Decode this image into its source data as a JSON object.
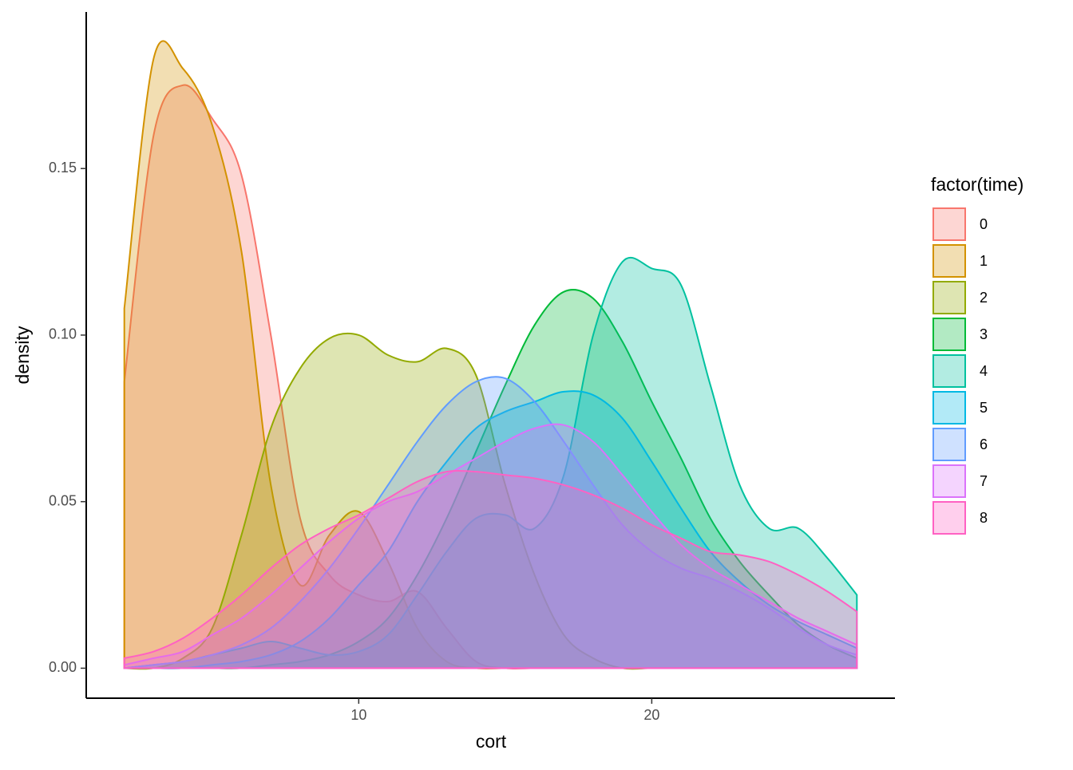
{
  "chart_data": {
    "type": "density",
    "x_label": "cort",
    "y_label": "density",
    "x": [
      2,
      3,
      4,
      5,
      6,
      7,
      8,
      9,
      10,
      11,
      12,
      13,
      14,
      15,
      16,
      17,
      18,
      19,
      20,
      21,
      22,
      23,
      24,
      25,
      26,
      27
    ],
    "xlim": [
      0.7,
      28.3
    ],
    "ylim": [
      -0.009,
      0.197
    ],
    "xticks": [
      10,
      20
    ],
    "yticks": [
      {
        "value": 0,
        "label": "0.00"
      },
      {
        "value": 0.05,
        "label": "0.05"
      },
      {
        "value": 0.1,
        "label": "0.10"
      },
      {
        "value": 0.15,
        "label": "0.15"
      }
    ],
    "legend_title": "factor(time)",
    "legend_position": "right",
    "fill_opacity": 0.3,
    "series": [
      {
        "name": "0",
        "color": "#F8766D",
        "values": [
          0.086,
          0.16,
          0.175,
          0.165,
          0.148,
          0.1,
          0.045,
          0.028,
          0.022,
          0.02,
          0.023,
          0.012,
          0.002,
          0,
          0,
          0,
          0,
          0,
          0,
          0,
          0,
          0,
          0,
          0,
          0,
          0
        ]
      },
      {
        "name": "1",
        "color": "#D39200",
        "values": [
          0.108,
          0.183,
          0.18,
          0.163,
          0.125,
          0.055,
          0.025,
          0.04,
          0.047,
          0.032,
          0.012,
          0.002,
          0,
          0,
          0,
          0,
          0,
          0,
          0,
          0,
          0,
          0,
          0,
          0,
          0,
          0
        ]
      },
      {
        "name": "2",
        "color": "#93AA00",
        "values": [
          0,
          0,
          0.003,
          0.012,
          0.04,
          0.072,
          0.09,
          0.099,
          0.1,
          0.094,
          0.092,
          0.096,
          0.088,
          0.055,
          0.028,
          0.01,
          0.003,
          0,
          0,
          0,
          0,
          0,
          0,
          0,
          0,
          0
        ]
      },
      {
        "name": "3",
        "color": "#00BA38",
        "values": [
          0,
          0,
          0,
          0,
          0,
          0.001,
          0.002,
          0.004,
          0.008,
          0.015,
          0.028,
          0.045,
          0.065,
          0.085,
          0.103,
          0.113,
          0.111,
          0.098,
          0.08,
          0.063,
          0.045,
          0.032,
          0.022,
          0.013,
          0.007,
          0.003
        ]
      },
      {
        "name": "4",
        "color": "#00C19F",
        "values": [
          0,
          0.001,
          0.002,
          0.004,
          0.006,
          0.008,
          0.006,
          0.004,
          0.005,
          0.01,
          0.022,
          0.035,
          0.045,
          0.046,
          0.042,
          0.058,
          0.1,
          0.122,
          0.12,
          0.115,
          0.085,
          0.055,
          0.042,
          0.042,
          0.033,
          0.022
        ]
      },
      {
        "name": "5",
        "color": "#00B9E3",
        "values": [
          0,
          0,
          0,
          0.001,
          0.002,
          0.004,
          0.008,
          0.015,
          0.025,
          0.035,
          0.05,
          0.062,
          0.072,
          0.077,
          0.08,
          0.083,
          0.082,
          0.075,
          0.062,
          0.048,
          0.035,
          0.026,
          0.019,
          0.014,
          0.01,
          0.006
        ]
      },
      {
        "name": "6",
        "color": "#619CFF",
        "values": [
          0,
          0.001,
          0.002,
          0.004,
          0.007,
          0.012,
          0.02,
          0.03,
          0.042,
          0.055,
          0.068,
          0.079,
          0.086,
          0.087,
          0.08,
          0.068,
          0.055,
          0.043,
          0.035,
          0.03,
          0.027,
          0.023,
          0.018,
          0.012,
          0.007,
          0.004
        ]
      },
      {
        "name": "7",
        "color": "#DB72FB",
        "values": [
          0.001,
          0.003,
          0.005,
          0.01,
          0.015,
          0.022,
          0.03,
          0.038,
          0.045,
          0.05,
          0.053,
          0.058,
          0.063,
          0.068,
          0.072,
          0.073,
          0.068,
          0.058,
          0.047,
          0.037,
          0.03,
          0.025,
          0.02,
          0.015,
          0.011,
          0.007
        ]
      },
      {
        "name": "8",
        "color": "#FF61C3",
        "values": [
          0.003,
          0.005,
          0.009,
          0.015,
          0.022,
          0.03,
          0.037,
          0.042,
          0.046,
          0.051,
          0.056,
          0.059,
          0.059,
          0.058,
          0.057,
          0.055,
          0.052,
          0.048,
          0.043,
          0.039,
          0.035,
          0.034,
          0.032,
          0.028,
          0.023,
          0.017
        ]
      }
    ]
  }
}
